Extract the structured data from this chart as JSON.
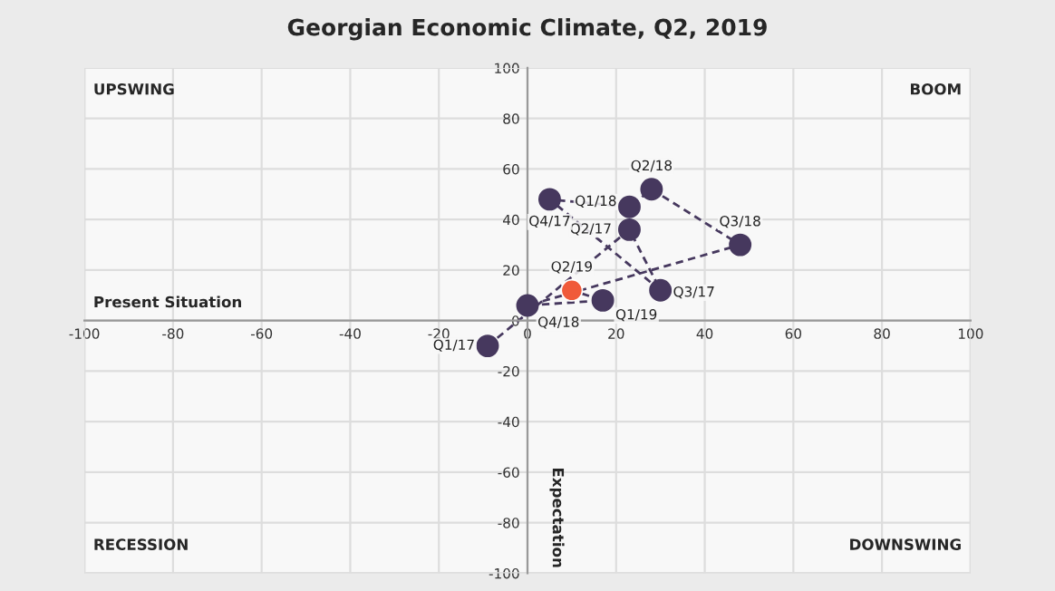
{
  "chart_data": {
    "type": "line",
    "title": "Georgian Economic Climate, Q2, 2019",
    "xlabel": "Present Situation",
    "ylabel": "Expectation",
    "series": [
      {
        "x": [
          -9,
          23,
          30,
          5,
          23,
          28,
          48,
          0,
          17,
          10
        ],
        "values": [
          -10,
          36,
          12,
          48,
          45,
          52,
          30,
          6,
          8,
          12
        ],
        "color": "#46385e",
        "colors": [
          "#46385e",
          "#46385e",
          "#46385e",
          "#46385e",
          "#46385e",
          "#46385e",
          "#46385e",
          "#46385e",
          "#46385e",
          "#f05a3a"
        ]
      }
    ],
    "marker": "circle",
    "line_style": "dashed",
    "grid": true,
    "xlim": [
      -100,
      100
    ],
    "ylim": [
      -100,
      100
    ],
    "xticks": [
      -100,
      -80,
      -60,
      -40,
      -20,
      0,
      20,
      40,
      60,
      80,
      100
    ],
    "yticks": [
      -100,
      -80,
      -60,
      -40,
      -20,
      0,
      20,
      40,
      60,
      80,
      100
    ],
    "annotations": [
      "UPSWING",
      "BOOM",
      "RECESSION",
      "DOWNSWING",
      {
        "text": "Q1/17",
        "x": -9,
        "y": -10
      },
      {
        "text": "Q2/17",
        "x": 23,
        "y": 36
      },
      {
        "text": "Q3/17",
        "x": 30,
        "y": 12
      },
      {
        "text": "Q4/17",
        "x": 5,
        "y": 48
      },
      {
        "text": "Q1/18",
        "x": 23,
        "y": 45
      },
      {
        "text": "Q2/18",
        "x": 28,
        "y": 52
      },
      {
        "text": "Q3/18",
        "x": 48,
        "y": 30
      },
      {
        "text": "Q4/18",
        "x": 0,
        "y": 6
      },
      {
        "text": "Q1/19",
        "x": 17,
        "y": 8
      },
      {
        "text": "Q2/19",
        "x": 10,
        "y": 12
      }
    ]
  }
}
